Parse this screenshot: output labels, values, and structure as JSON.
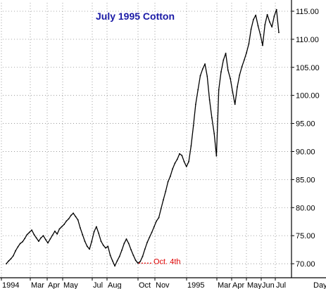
{
  "chart_data": {
    "type": "line",
    "title": "July 1995 Cotton",
    "xlabel": "",
    "ylabel": "",
    "ylim": [
      67.5,
      116.5
    ],
    "y_ticks": [
      "70.00",
      "75.00",
      "80.00",
      "85.00",
      "90.00",
      "95.00",
      "100.00",
      "105.00",
      "110.00",
      "115.00"
    ],
    "x_tick_labels": [
      "1994",
      "Mar",
      "Apr",
      "May",
      "Jul",
      "Aug",
      "Oct",
      "Nov",
      "1995",
      "Mar",
      "Apr",
      "May",
      "Jun",
      "Jul",
      "Day"
    ],
    "grid": true,
    "legend": "none",
    "annotation": {
      "text": "Oct. 4th",
      "value": 70.1
    },
    "series": [
      {
        "values": [
          70.0,
          70.5,
          70.9,
          71.4,
          72.3,
          73.0,
          73.6,
          73.9,
          74.5,
          75.2,
          75.6,
          76.0,
          75.2,
          74.6,
          74.0,
          74.6,
          75.0,
          74.3,
          73.7,
          74.4,
          75.1,
          75.8,
          75.3,
          76.2,
          76.6,
          77.0,
          77.6,
          78.0,
          78.6,
          79.0,
          78.4,
          77.8,
          76.4,
          75.2,
          74.0,
          73.1,
          72.6,
          74.0,
          75.7,
          76.6,
          75.4,
          74.0,
          73.3,
          72.8,
          73.1,
          71.5,
          70.5,
          69.6,
          70.5,
          71.3,
          72.4,
          73.6,
          74.4,
          73.6,
          72.5,
          71.5,
          70.6,
          70.1,
          70.4,
          71.3,
          72.6,
          73.8,
          74.7,
          75.6,
          76.6,
          77.6,
          78.2,
          79.8,
          81.4,
          82.9,
          84.6,
          85.6,
          86.9,
          87.9,
          88.6,
          89.6,
          89.3,
          88.2,
          87.3,
          88.2,
          91.0,
          94.6,
          98.4,
          101.0,
          103.5,
          104.7,
          105.6,
          103.4,
          99.2,
          96.0,
          93.2,
          89.2,
          101.0,
          104.2,
          106.3,
          107.5,
          104.5,
          103.0,
          100.6,
          98.4,
          101.5,
          103.6,
          105.1,
          106.3,
          107.6,
          109.2,
          111.8,
          113.5,
          114.3,
          112.4,
          110.8,
          108.9,
          112.6,
          114.4,
          113.1,
          112.2,
          114.1,
          115.3,
          111.2
        ]
      }
    ]
  }
}
